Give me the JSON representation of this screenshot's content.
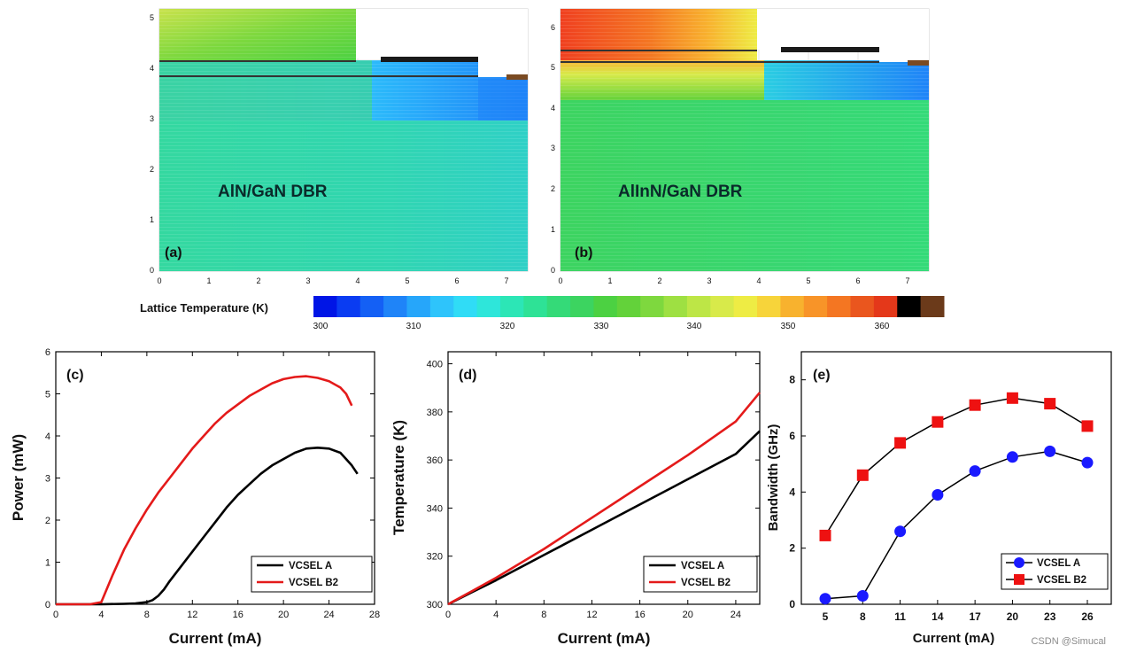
{
  "watermark": "CSDN @Simucal",
  "colorbar": {
    "label": "Lattice Temperature (K)",
    "ticks": [
      300,
      310,
      320,
      330,
      340,
      350,
      360
    ],
    "colors": [
      "#0015e6",
      "#0a3cf2",
      "#1460f5",
      "#1f84f8",
      "#26a6fa",
      "#2ec4fb",
      "#30dcf6",
      "#2ee6da",
      "#2ce6b6",
      "#2ee296",
      "#34da78",
      "#3cd460",
      "#4cd142",
      "#63d23a",
      "#7ed83e",
      "#9ee042",
      "#bde646",
      "#d8ea4a",
      "#eeec44",
      "#f7d43a",
      "#f8b22e",
      "#f89428",
      "#f47622",
      "#ea561e",
      "#e4381a",
      "#000000",
      "#6b3a1a"
    ]
  },
  "heatmaps": [
    {
      "id": "(a)",
      "label": "AlN/GaN DBR",
      "xticks": [
        "0",
        "1",
        "2",
        "3",
        "4",
        "5",
        "6",
        "7"
      ],
      "yticks": [
        "0",
        "1",
        "2",
        "3",
        "4",
        "5"
      ]
    },
    {
      "id": "(b)",
      "label": "AlInN/GaN DBR",
      "xticks": [
        "0",
        "1",
        "2",
        "3",
        "4",
        "5",
        "6",
        "7"
      ],
      "yticks": [
        "0",
        "1",
        "2",
        "3",
        "4",
        "5",
        "6"
      ]
    }
  ],
  "chart_data": [
    {
      "type": "line",
      "panel": "(c)",
      "title": "",
      "xlabel": "Current (mA)",
      "ylabel": "Power (mW)",
      "xlim": [
        0,
        28
      ],
      "ylim": [
        0,
        6
      ],
      "xticks": [
        0,
        4,
        8,
        12,
        16,
        20,
        24,
        28
      ],
      "yticks": [
        0,
        1,
        2,
        3,
        4,
        5,
        6
      ],
      "legend": "bottom-right",
      "series": [
        {
          "name": "VCSEL A",
          "color": "#000000",
          "x": [
            0,
            4,
            6,
            7,
            8,
            8.5,
            9,
            9.5,
            10,
            11,
            12,
            13,
            14,
            15,
            16,
            17,
            18,
            19,
            20,
            21,
            22,
            23,
            24,
            25,
            25.5,
            26,
            26.5
          ],
          "y": [
            0,
            0,
            0.01,
            0.02,
            0.05,
            0.1,
            0.2,
            0.35,
            0.55,
            0.9,
            1.25,
            1.6,
            1.95,
            2.3,
            2.6,
            2.85,
            3.1,
            3.3,
            3.45,
            3.6,
            3.7,
            3.72,
            3.7,
            3.6,
            3.45,
            3.3,
            3.1
          ]
        },
        {
          "name": "VCSEL B2",
          "color": "#e41a1a",
          "x": [
            0,
            3,
            4,
            5,
            6,
            7,
            8,
            9,
            10,
            11,
            12,
            13,
            14,
            15,
            16,
            17,
            18,
            19,
            20,
            21,
            22,
            23,
            24,
            25,
            25.5,
            26
          ],
          "y": [
            0,
            0,
            0.05,
            0.7,
            1.3,
            1.8,
            2.25,
            2.65,
            3.0,
            3.35,
            3.7,
            4.0,
            4.3,
            4.55,
            4.75,
            4.95,
            5.1,
            5.25,
            5.35,
            5.4,
            5.42,
            5.38,
            5.3,
            5.15,
            5.0,
            4.72
          ]
        }
      ]
    },
    {
      "type": "line",
      "panel": "(d)",
      "title": "",
      "xlabel": "Current (mA)",
      "ylabel": "Temperature (K)",
      "xlim": [
        0,
        26
      ],
      "ylim": [
        300,
        405
      ],
      "xticks": [
        0,
        4,
        8,
        12,
        16,
        20,
        24
      ],
      "yticks": [
        300,
        320,
        340,
        360,
        380,
        400
      ],
      "legend": "bottom-right",
      "series": [
        {
          "name": "VCSEL A",
          "color": "#000000",
          "x": [
            0,
            2,
            4,
            8,
            12,
            16,
            20,
            24,
            26
          ],
          "y": [
            300,
            305,
            310,
            320.5,
            331,
            341.5,
            352,
            362.5,
            372
          ]
        },
        {
          "name": "VCSEL B2",
          "color": "#e41a1a",
          "x": [
            0,
            2,
            4,
            8,
            12,
            16,
            20,
            24,
            26
          ],
          "y": [
            300,
            305.5,
            311,
            323,
            336,
            349,
            362,
            376,
            388
          ]
        }
      ]
    },
    {
      "type": "scatter",
      "panel": "(e)",
      "title": "",
      "xlabel": "Current (mA)",
      "ylabel": "Bandwidth (GHz)",
      "categories": [
        "5",
        "8",
        "11",
        "14",
        "17",
        "20",
        "23",
        "26"
      ],
      "ylim": [
        0,
        9
      ],
      "yticks": [
        0,
        2,
        4,
        6,
        8
      ],
      "legend": "bottom-right",
      "series": [
        {
          "name": "VCSEL A",
          "color": "#1a1aff",
          "marker": "circle",
          "values": [
            0.2,
            0.3,
            2.6,
            3.9,
            4.75,
            5.25,
            5.45,
            5.05
          ]
        },
        {
          "name": "VCSEL B2",
          "color": "#ee1111",
          "marker": "square",
          "values": [
            2.45,
            4.6,
            5.75,
            6.5,
            7.1,
            7.35,
            7.15,
            6.35
          ]
        }
      ]
    }
  ]
}
